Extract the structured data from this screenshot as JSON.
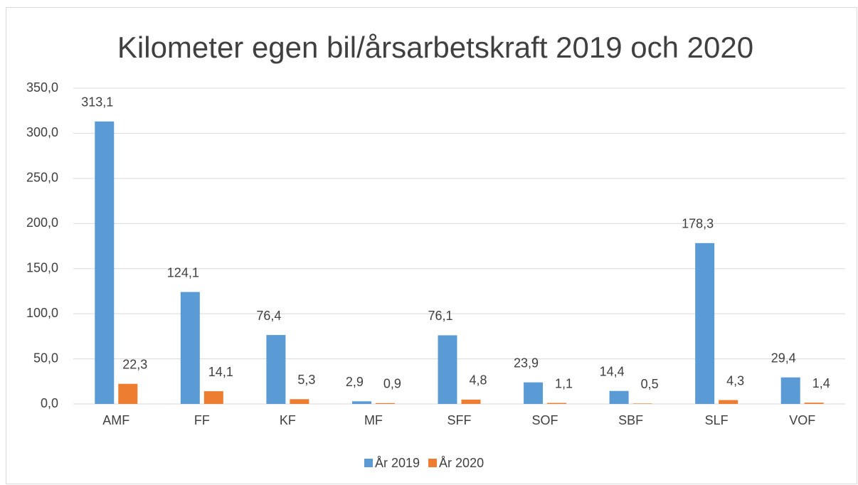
{
  "chart_data": {
    "type": "bar",
    "title": "Kilometer egen bil/årsarbetskraft 2019 och 2020",
    "categories": [
      "AMF",
      "FF",
      "KF",
      "MF",
      "SFF",
      "SOF",
      "SBF",
      "SLF",
      "VOF"
    ],
    "series": [
      {
        "name": "År 2019",
        "color": "#5b9bd5",
        "values": [
          313.1,
          124.1,
          76.4,
          2.9,
          76.1,
          23.9,
          14.4,
          178.3,
          29.4
        ],
        "value_labels": [
          "313,1",
          "124,1",
          "76,4",
          "2,9",
          "76,1",
          "23,9",
          "14,4",
          "178,3",
          "29,4"
        ]
      },
      {
        "name": "År 2020",
        "color": "#ed7d31",
        "values": [
          22.3,
          14.1,
          5.3,
          0.9,
          4.8,
          1.1,
          0.5,
          4.3,
          1.4
        ],
        "value_labels": [
          "22,3",
          "14,1",
          "5,3",
          "0,9",
          "4,8",
          "1,1",
          "0,5",
          "4,3",
          "1,4"
        ]
      }
    ],
    "ylim": [
      0,
      350
    ],
    "yticks": [
      {
        "value": 0,
        "label": "0,0"
      },
      {
        "value": 50,
        "label": "50,0"
      },
      {
        "value": 100,
        "label": "100,0"
      },
      {
        "value": 150,
        "label": "150,0"
      },
      {
        "value": 200,
        "label": "200,0"
      },
      {
        "value": 250,
        "label": "250,0"
      },
      {
        "value": 300,
        "label": "300,0"
      },
      {
        "value": 350,
        "label": "350,0"
      }
    ],
    "grid": true,
    "legend": "bottom"
  }
}
